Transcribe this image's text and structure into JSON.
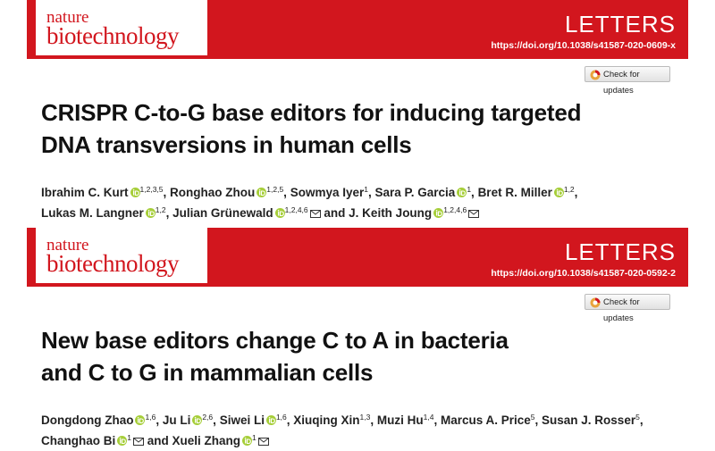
{
  "papers": [
    {
      "journal": {
        "line1": "nature",
        "line2": "biotechnology"
      },
      "section": "LETTERS",
      "doi": "https://doi.org/10.1038/s41587-020-0609-x",
      "check_button": "Check for updates",
      "title_lines": [
        "CRISPR C-to-G base editors for inducing targeted",
        "DNA transversions in human cells"
      ],
      "author_lines": [
        [
          {
            "name": "Ibrahim C. Kurt",
            "orcid": true,
            "affiliations": "1,2,3,5",
            "separator": ", "
          },
          {
            "name": "Ronghao Zhou",
            "orcid": true,
            "affiliations": "1,2,5",
            "separator": ", "
          },
          {
            "name": "Sowmya Iyer",
            "orcid": false,
            "affiliations": "1",
            "separator": ", "
          },
          {
            "name": "Sara P. Garcia",
            "orcid": true,
            "affiliations": "1",
            "separator": ", "
          },
          {
            "name": "Bret R. Miller",
            "orcid": true,
            "affiliations": "1,2",
            "separator": ","
          }
        ],
        [
          {
            "name": "Lukas M. Langner",
            "orcid": true,
            "affiliations": "1,2",
            "separator": ", "
          },
          {
            "name": "Julian Grünewald",
            "orcid": true,
            "affiliations": "1,2,4,6",
            "email": true,
            "separator": " and "
          },
          {
            "name": "J. Keith Joung",
            "orcid": true,
            "affiliations": "1,2,4,6",
            "email": true
          }
        ]
      ]
    },
    {
      "journal": {
        "line1": "nature",
        "line2": "biotechnology"
      },
      "section": "LETTERS",
      "doi": "https://doi.org/10.1038/s41587-020-0592-2",
      "check_button": "Check for updates",
      "title_lines": [
        "New base editors change C to A in bacteria",
        "and C to G in mammalian cells"
      ],
      "author_lines": [
        [
          {
            "name": "Dongdong Zhao",
            "orcid": true,
            "affiliations": "1,6",
            "separator": ", "
          },
          {
            "name": "Ju Li",
            "orcid": true,
            "affiliations": "2,6",
            "separator": ", "
          },
          {
            "name": "Siwei Li",
            "orcid": true,
            "affiliations": "1,6",
            "separator": ", "
          },
          {
            "name": "Xiuqing Xin",
            "orcid": false,
            "affiliations": "1,3",
            "separator": ", "
          },
          {
            "name": "Muzi Hu",
            "orcid": false,
            "affiliations": "1,4",
            "separator": ", "
          },
          {
            "name": "Marcus A. Price",
            "orcid": false,
            "affiliations": "5",
            "separator": ", "
          },
          {
            "name": "Susan J. Rosser",
            "orcid": false,
            "affiliations": "5",
            "separator": ","
          }
        ],
        [
          {
            "name": "Changhao Bi",
            "orcid": true,
            "affiliations": "1",
            "email": true,
            "separator": " and "
          },
          {
            "name": "Xueli Zhang",
            "orcid": true,
            "affiliations": "1",
            "email": true
          }
        ]
      ]
    }
  ]
}
